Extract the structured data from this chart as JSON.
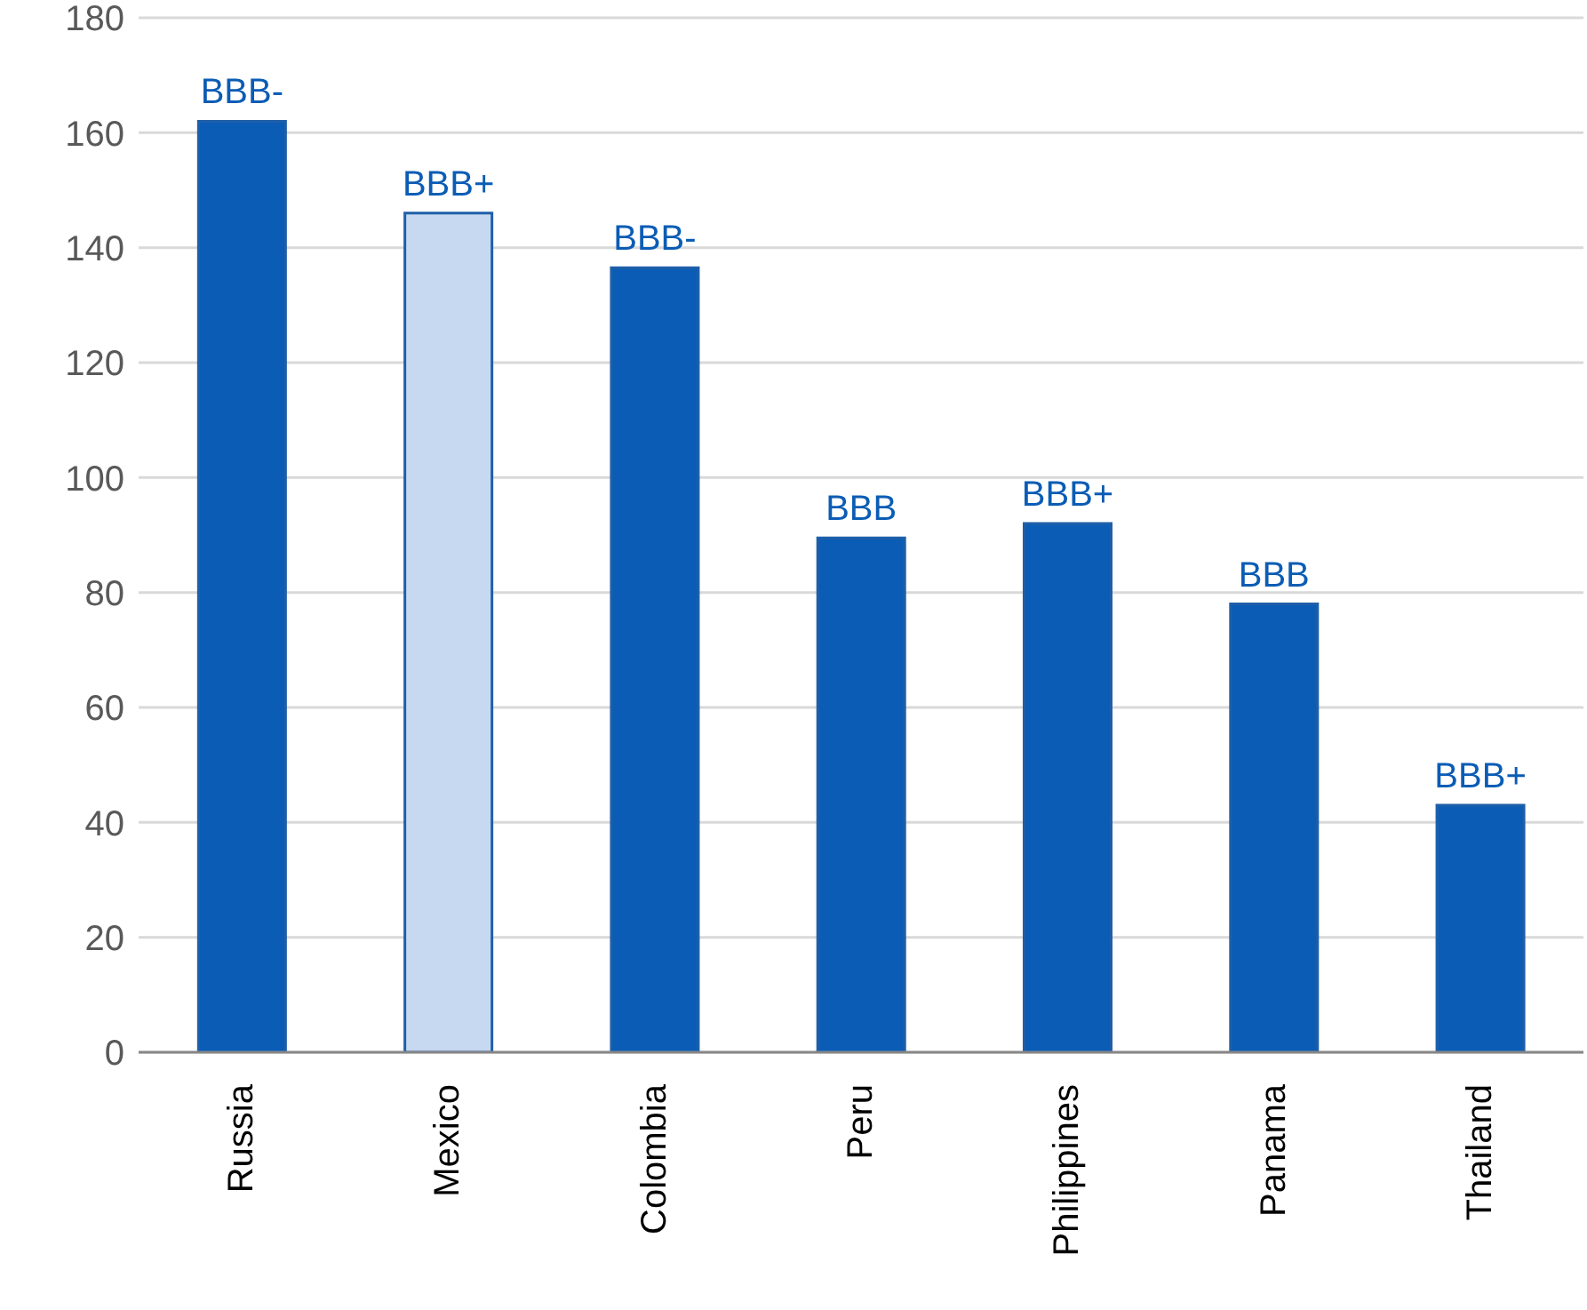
{
  "chart_data": {
    "type": "bar",
    "categories": [
      "Russia",
      "Mexico",
      "Colombia",
      "Peru",
      "Philippines",
      "Panama",
      "Thailand"
    ],
    "values": [
      162,
      146,
      136.5,
      89.5,
      92,
      78,
      43
    ],
    "colors": [
      "#0b5cb5",
      "#c6d9f1",
      "#0b5cb5",
      "#0b5cb5",
      "#0b5cb5",
      "#0b5cb5",
      "#0b5cb5"
    ],
    "value_labels": [
      "BBB-",
      "BBB+",
      "BBB-",
      "BBB",
      "BBB+",
      "BBB",
      "BBB+"
    ],
    "ylim": [
      0,
      180
    ],
    "yticks": [
      0,
      20,
      40,
      60,
      80,
      100,
      120,
      140,
      160,
      180
    ],
    "grid": "y"
  }
}
